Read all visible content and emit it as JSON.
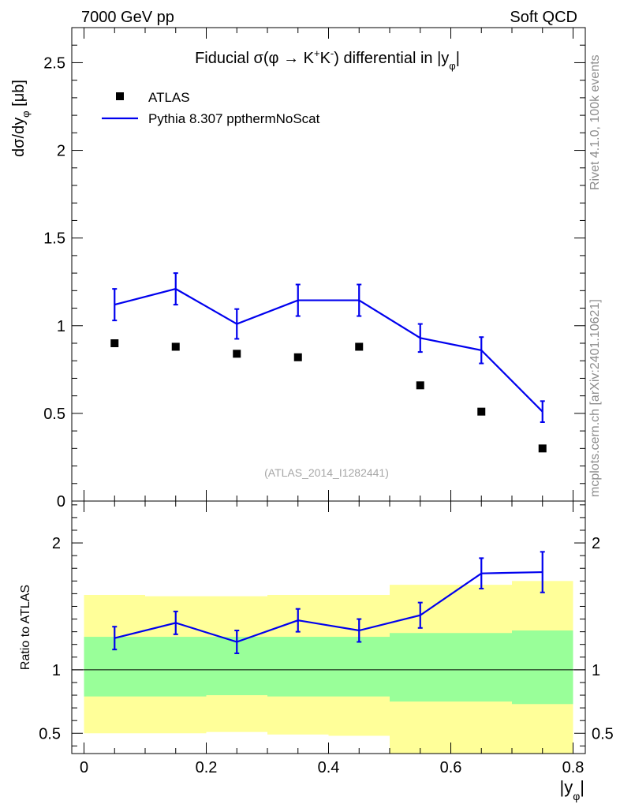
{
  "header": {
    "left": "7000 GeV pp",
    "right": "Soft QCD"
  },
  "side_labels": {
    "rivet": "Rivet 4.1.0,  100k events",
    "mcplots": "mcplots.cern.ch [arXiv:2401.10621]"
  },
  "colors": {
    "mc": "#0000ee",
    "data": "#000000",
    "band_outer": "#ffff99",
    "band_inner": "#99ff99"
  },
  "chart_data": [
    {
      "type": "scatter+line",
      "title": "Fiducial σ(φ →  K⁺K⁻) differential in |y_φ|",
      "ylabel": "dσ/dy_φ [μb]",
      "xlabel": "|y_φ|",
      "ylim": [
        0,
        2.7
      ],
      "xlim": [
        -0.02,
        0.82
      ],
      "yticks": [
        0,
        0.5,
        1,
        1.5,
        2,
        2.5
      ],
      "ytick_labels": [
        "0",
        "0.5",
        "1",
        "1.5",
        "2",
        "2.5"
      ],
      "watermark": "(ATLAS_2014_I1282441)",
      "legend": [
        {
          "name": "ATLAS",
          "marker": "square"
        },
        {
          "name": "Pythia 8.307 ppthermNoScat",
          "marker": "line"
        }
      ],
      "x": [
        0.05,
        0.15,
        0.25,
        0.35,
        0.45,
        0.55,
        0.65,
        0.75
      ],
      "series": [
        {
          "name": "ATLAS",
          "values": [
            0.9,
            0.88,
            0.84,
            0.82,
            0.88,
            0.66,
            0.51,
            0.3
          ]
        },
        {
          "name": "Pythia 8.307 ppthermNoScat",
          "values": [
            1.12,
            1.21,
            1.01,
            1.145,
            1.145,
            0.93,
            0.86,
            0.51
          ],
          "err": [
            0.09,
            0.09,
            0.085,
            0.09,
            0.09,
            0.08,
            0.075,
            0.06
          ]
        }
      ]
    },
    {
      "type": "ratio",
      "ylabel": "Ratio to ATLAS",
      "xlabel": "|y_φ|",
      "ylim": [
        0.34,
        2.33
      ],
      "xlim": [
        -0.02,
        0.82
      ],
      "yticks": [
        0.5,
        1,
        2
      ],
      "ytick_labels": [
        "0.5",
        "1",
        "2"
      ],
      "xticks": [
        0,
        0.2,
        0.4,
        0.6,
        0.8
      ],
      "xtick_labels": [
        "0",
        "0.2",
        "0.4",
        "0.6",
        "0.8"
      ],
      "x_edges": [
        0,
        0.1,
        0.2,
        0.3,
        0.4,
        0.5,
        0.6,
        0.7,
        0.8
      ],
      "band_outer": {
        "lo": [
          0.5,
          0.5,
          0.51,
          0.49,
          0.48,
          0.34,
          0.34,
          0.34
        ],
        "hi": [
          1.59,
          1.58,
          1.58,
          1.59,
          1.59,
          1.67,
          1.67,
          1.7
        ]
      },
      "band_inner": {
        "lo": [
          0.79,
          0.79,
          0.8,
          0.79,
          0.79,
          0.75,
          0.75,
          0.73
        ],
        "hi": [
          1.26,
          1.26,
          1.26,
          1.26,
          1.26,
          1.29,
          1.29,
          1.31
        ]
      },
      "x": [
        0.05,
        0.15,
        0.25,
        0.35,
        0.45,
        0.55,
        0.65,
        0.75
      ],
      "series": [
        {
          "name": "Pythia 8.307 ppthermNoScat / ATLAS",
          "values": [
            1.25,
            1.37,
            1.22,
            1.39,
            1.31,
            1.43,
            1.76,
            1.77
          ],
          "err": [
            0.09,
            0.09,
            0.09,
            0.09,
            0.09,
            0.1,
            0.12,
            0.16
          ]
        }
      ]
    }
  ]
}
